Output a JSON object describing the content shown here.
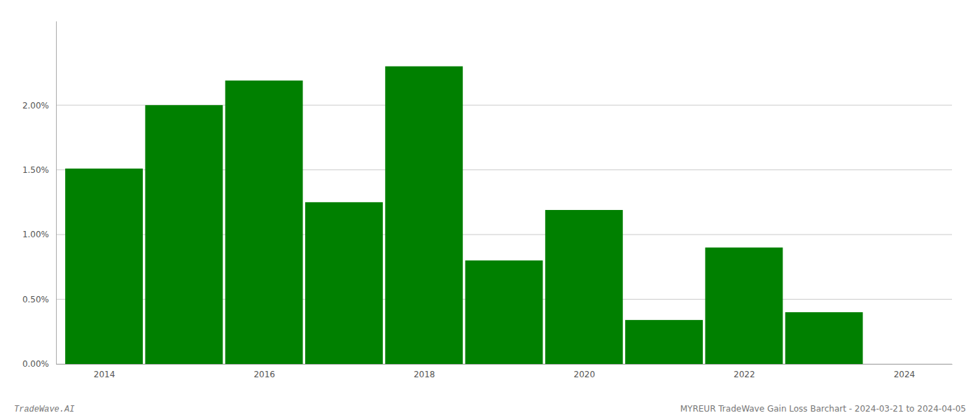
{
  "chart_data": {
    "type": "bar",
    "x": [
      2014,
      2015,
      2016,
      2017,
      2018,
      2019,
      2020,
      2021,
      2022,
      2023
    ],
    "values": [
      0.0151,
      0.02,
      0.0219,
      0.0125,
      0.023,
      0.008,
      0.0119,
      0.0034,
      0.009,
      0.004
    ],
    "color": "#008000",
    "xlim": [
      2013.4,
      2024.6
    ],
    "xticks": [
      2014,
      2016,
      2018,
      2020,
      2022,
      2024
    ],
    "ylim": [
      0,
      0.0265
    ],
    "yticks": [
      {
        "value": 0.0,
        "label": "0.00%"
      },
      {
        "value": 0.005,
        "label": "0.50%"
      },
      {
        "value": 0.01,
        "label": "1.00%"
      },
      {
        "value": 0.015,
        "label": "1.50%"
      },
      {
        "value": 0.02,
        "label": "2.00%"
      }
    ],
    "grid": true,
    "annotations": [
      "TradeWave.AI",
      "MYREUR TradeWave Gain Loss Barchart - 2024-03-21 to 2024-04-05"
    ]
  }
}
